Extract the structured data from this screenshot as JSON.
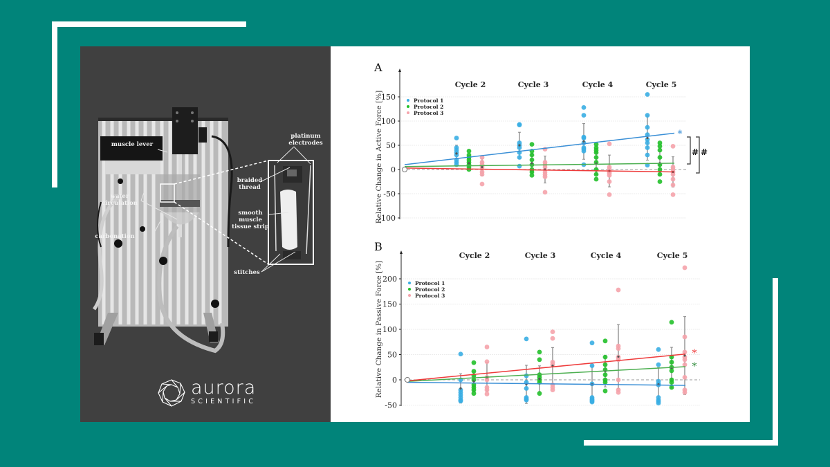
{
  "photo": {
    "labels": {
      "muscle_lever": "muscle lever",
      "platinum_electrodes_1": "platinum",
      "platinum_electrodes_2": "electrodes",
      "braided_thread_1": "braided",
      "braided_thread_2": "thread",
      "water_circulation_1": "water",
      "water_circulation_2": "circulation",
      "smooth_muscle_1": "smooth",
      "smooth_muscle_2": "muscle",
      "smooth_muscle_3": "tissue strip",
      "carbonation": "carbonation",
      "stitches": "stitches"
    }
  },
  "logo": {
    "name": "aurora",
    "subtitle": "SCIENTIFIC"
  },
  "colors": {
    "background": "#01847a",
    "photo_panel": "#404040",
    "protocol_1": "#3aaee3",
    "protocol_2": "#22c02a",
    "protocol_3": "#f5a3ab",
    "trend_1": "#3a8fd6",
    "trend_2": "#4caf50",
    "trend_3": "#ee3a3a"
  },
  "chart_data": [
    {
      "type": "scatter",
      "panel": "A",
      "ylabel": "Relative Change in Active Force [%]",
      "categories": [
        "Cycle 2",
        "Cycle 3",
        "Cycle 4",
        "Cycle 5"
      ],
      "yticks": [
        150,
        100,
        50,
        0,
        -50,
        -100
      ],
      "ylim": [
        -100,
        150
      ],
      "grid": true,
      "legend": [
        "Protocol 1",
        "Protocol 2",
        "Protocol 3"
      ],
      "legend_position": "upper left",
      "series": [
        {
          "name": "Protocol 1",
          "points": [
            [
              65,
              45,
              40,
              35,
              30,
              20,
              15,
              10
            ],
            [
              93,
              92,
              55,
              50,
              45,
              35,
              25,
              7
            ],
            [
              128,
              112,
              67,
              65,
              55,
              45,
              42,
              38,
              10
            ],
            [
              155,
              112,
              87,
              72,
              62,
              55,
              45,
              30,
              9
            ]
          ],
          "means": [
            33,
            50,
            58,
            65
          ]
        },
        {
          "name": "Protocol 2",
          "points": [
            [
              38,
              30,
              25,
              20,
              15,
              10,
              5,
              0
            ],
            [
              52,
              38,
              30,
              20,
              10,
              0,
              -5,
              -12
            ],
            [
              52,
              45,
              40,
              35,
              25,
              15,
              0,
              -10,
              -20
            ],
            [
              55,
              48,
              40,
              25,
              10,
              0,
              -10,
              -25
            ]
          ],
          "means": [
            13,
            13,
            12,
            13
          ]
        },
        {
          "name": "Protocol 3",
          "points": [
            [
              25,
              15,
              10,
              5,
              -5,
              -10,
              -30
            ],
            [
              42,
              15,
              10,
              5,
              -5,
              -10,
              -15,
              -47
            ],
            [
              53,
              5,
              0,
              -5,
              -8,
              -12,
              -25,
              -52
            ],
            [
              48,
              5,
              0,
              -5,
              -10,
              -20,
              -32,
              -52
            ]
          ],
          "means": [
            5,
            0,
            -3,
            -5
          ]
        }
      ],
      "trend_lines": [
        {
          "name": "Protocol 1",
          "start": 10,
          "end": 75
        },
        {
          "name": "Protocol 2",
          "start": 6,
          "end": 13
        },
        {
          "name": "Protocol 3",
          "start": 3,
          "end": -5
        }
      ],
      "annotations": [
        "*",
        "#",
        "#"
      ]
    },
    {
      "type": "scatter",
      "panel": "B",
      "ylabel": "Relative Change in Passive Force [%]",
      "categories": [
        "Cycle 2",
        "Cycle 3",
        "Cycle 4",
        "Cycle 5"
      ],
      "yticks": [
        200,
        150,
        100,
        50,
        0,
        -50
      ],
      "ylim": [
        -50,
        200
      ],
      "grid": true,
      "legend": [
        "Protocol 1",
        "Protocol 2",
        "Protocol 3"
      ],
      "legend_position": "upper left",
      "series": [
        {
          "name": "Protocol 1",
          "points": [
            [
              51,
              0,
              -20,
              -25,
              -30,
              -35,
              -40,
              -42
            ],
            [
              81,
              8,
              -5,
              -17,
              -35,
              -38,
              -40
            ],
            [
              73,
              28,
              -8,
              -35,
              -38,
              -40,
              -42,
              -44
            ],
            [
              60,
              30,
              -3,
              -8,
              -10,
              -35,
              -40,
              -43,
              -46
            ]
          ],
          "means": [
            -17,
            -9,
            -9,
            -9
          ]
        },
        {
          "name": "Protocol 2",
          "points": [
            [
              34,
              17,
              8,
              0,
              -10,
              -15,
              -20,
              -27
            ],
            [
              55,
              40,
              10,
              5,
              0,
              -5,
              -27
            ],
            [
              77,
              45,
              30,
              20,
              10,
              0,
              -5,
              -22
            ],
            [
              114,
              45,
              35,
              25,
              18,
              0,
              -5,
              -15
            ]
          ],
          "means": [
            -3,
            2,
            17,
            24
          ]
        },
        {
          "name": "Protocol 3",
          "points": [
            [
              65,
              36,
              5,
              0,
              -15,
              -20,
              -28
            ],
            [
              95,
              82,
              35,
              30,
              -10,
              -15,
              -20
            ],
            [
              178,
              67,
              62,
              45,
              40,
              0,
              -20,
              -25
            ],
            [
              222,
              85,
              55,
              45,
              40,
              30,
              5,
              -20,
              -25
            ]
          ],
          "means": [
            5,
            28,
            46,
            48
          ]
        }
      ],
      "trend_lines": [
        {
          "name": "Protocol 1",
          "start": -5,
          "end": -11
        },
        {
          "name": "Protocol 2",
          "start": -3,
          "end": 26
        },
        {
          "name": "Protocol 3",
          "start": -2,
          "end": 51
        }
      ],
      "annotations": [
        "*",
        "*"
      ]
    }
  ]
}
